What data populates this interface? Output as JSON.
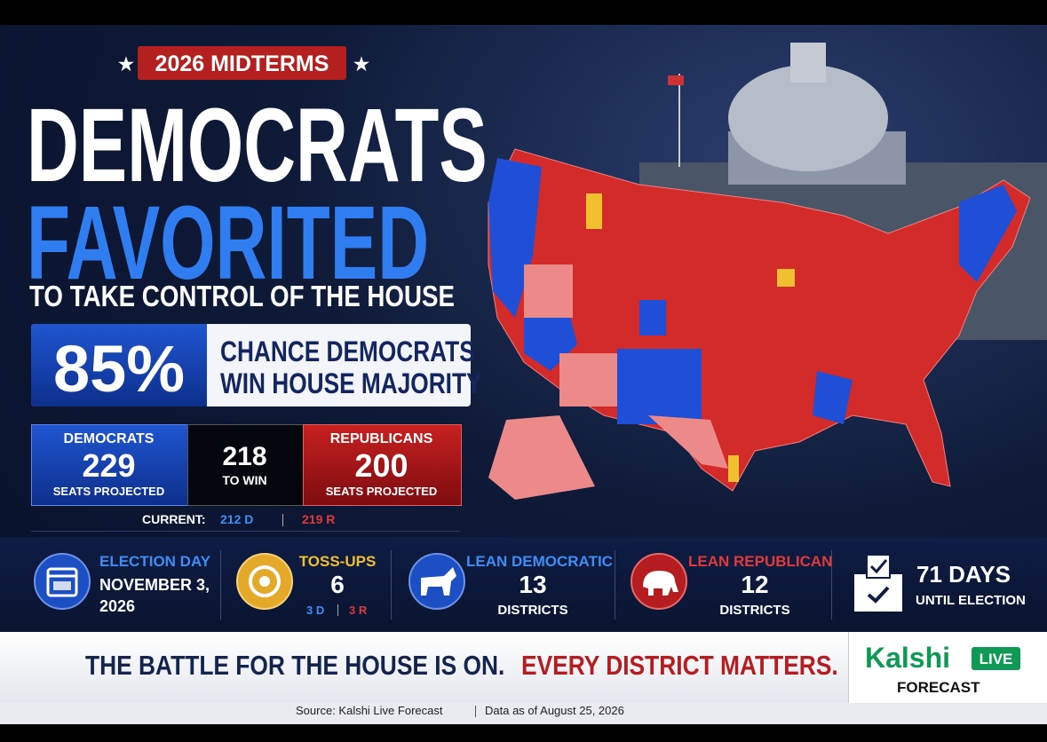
{
  "header": {
    "badge": "2026 MIDTERMS",
    "headline": [
      "DEMOCRATS",
      "FAVORITED"
    ],
    "subheadline": "TO TAKE CONTROL OF THE HOUSE"
  },
  "probability": {
    "value": "85%",
    "text": [
      "CHANCE DEMOCRATS",
      "WIN HOUSE MAJORITY"
    ]
  },
  "seats": {
    "democrats": {
      "label": "DEMOCRATS",
      "seats": "229",
      "note": "SEATS PROJECTED"
    },
    "threshold": {
      "seats": "218",
      "note": "TO WIN"
    },
    "republicans": {
      "label": "REPUBLICANS",
      "seats": "200",
      "note": "SEATS PROJECTED"
    }
  },
  "current": {
    "label": "CURRENT:",
    "democrats": "212 D",
    "republicans": "219 R"
  },
  "stats": [
    {
      "title": "ELECTION DAY",
      "lines": [
        "NOVEMBER 3,",
        "2026"
      ]
    },
    {
      "title": "TOSS-UPS",
      "value": "6",
      "split": [
        "3 D",
        "3 R"
      ]
    },
    {
      "title": "LEAN DEMOCRATIC",
      "value": "13",
      "note": "DISTRICTS"
    },
    {
      "title": "LEAN REPUBLICAN",
      "value": "12",
      "note": "DISTRICTS"
    },
    {
      "value": "71 DAYS",
      "note": "UNTIL ELECTION"
    }
  ],
  "banner": {
    "text": "THE BATTLE FOR THE HOUSE IS ON.",
    "emphasis": "EVERY DISTRICT MATTERS."
  },
  "logo": {
    "name": "Kalshi",
    "badge": "LIVE",
    "subtitle": "FORECAST"
  },
  "footer": {
    "source": "Source: Kalshi Live Forecast",
    "date": "Data as of August 25, 2026"
  }
}
